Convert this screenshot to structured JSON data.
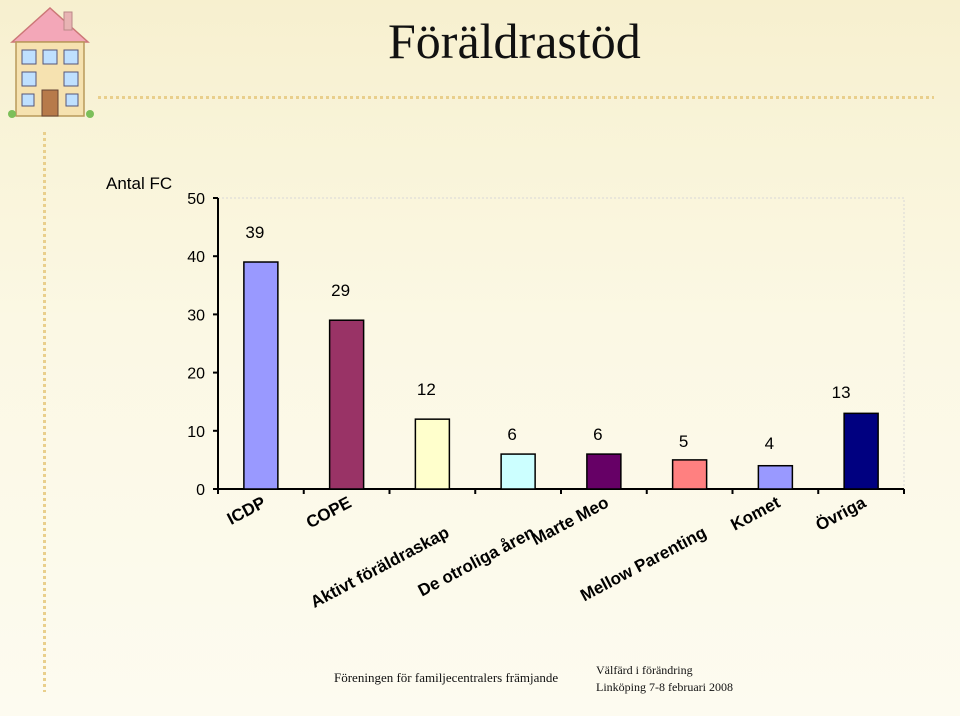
{
  "slide": {
    "title": "Föräldrastöd",
    "footer_left": "Föreningen för familjecentralers främjande",
    "footer_right_line1": "Välfärd i förändring",
    "footer_right_line2": "Linköping  7-8 februari 2008"
  },
  "chart_data": {
    "type": "bar",
    "title": "",
    "xlabel": "",
    "ylabel": "Antal FC",
    "ylim": [
      0,
      50
    ],
    "yticks": [
      0,
      10,
      20,
      30,
      40,
      50
    ],
    "categories": [
      "ICDP",
      "COPE",
      "Aktivt föräldraskap",
      "De otroliga åren",
      "Marte Meo",
      "Mellow Parenting",
      "Komet",
      "Övriga"
    ],
    "values": [
      39,
      29,
      12,
      6,
      6,
      5,
      4,
      13
    ],
    "colors": [
      "#9999ff",
      "#993366",
      "#ffffcc",
      "#ccffff",
      "#660066",
      "#ff8080",
      "#9999ff",
      "#000080"
    ],
    "data_labels": [
      "39",
      "29",
      "12",
      "6",
      "6",
      "5",
      "4",
      "13"
    ],
    "grid": false,
    "legend": "none"
  }
}
